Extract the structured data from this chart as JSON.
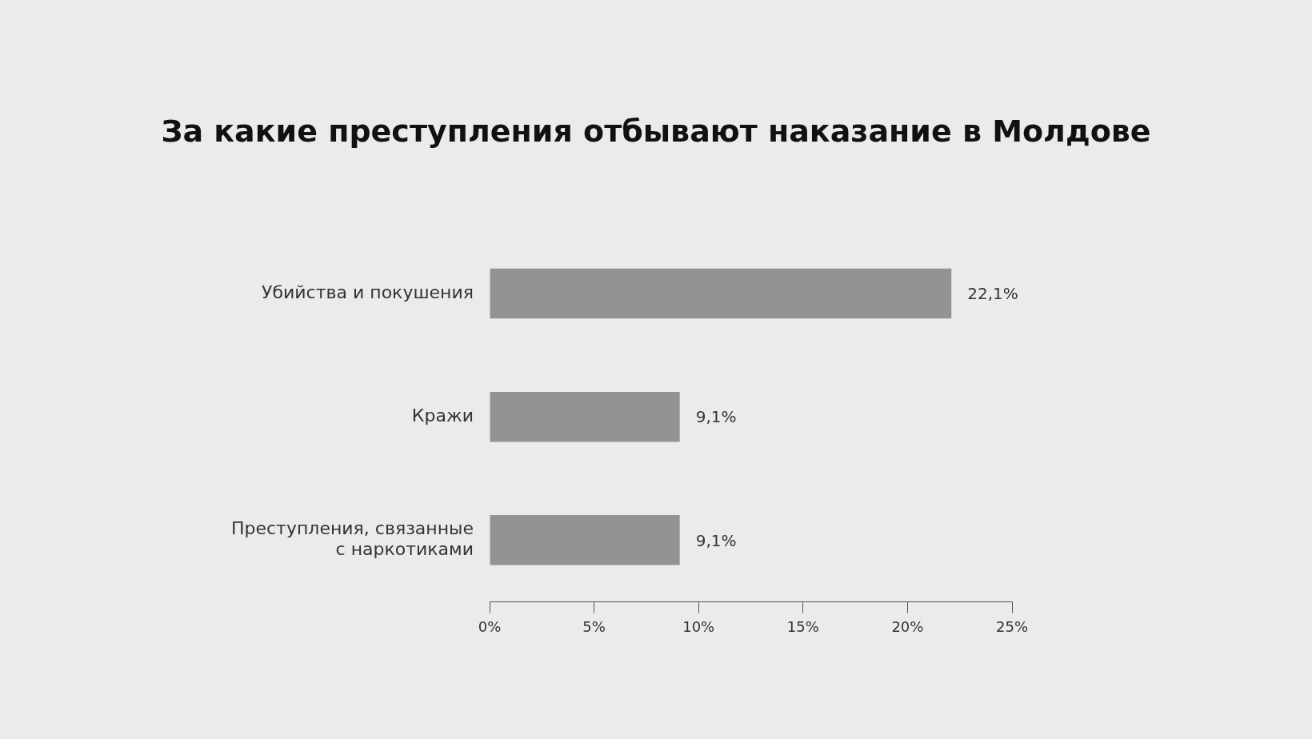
{
  "chart_data": {
    "type": "bar",
    "orientation": "horizontal",
    "title": "За какие преступления отбывают наказание в Молдове",
    "categories": [
      "Убийства и покушения",
      "Кражи",
      "Преступления, связанные с наркотиками"
    ],
    "values": [
      22.1,
      9.1,
      9.1
    ],
    "value_labels": [
      "22,1%",
      "9,1%",
      "9,1%"
    ],
    "color": "#939393",
    "xlim": [
      0,
      25
    ],
    "xticks": [
      {
        "value": 0,
        "label": "0%"
      },
      {
        "value": 5,
        "label": "5%"
      },
      {
        "value": 10,
        "label": "10%"
      },
      {
        "value": 15,
        "label": "15%"
      },
      {
        "value": 20,
        "label": "20%"
      },
      {
        "value": 25,
        "label": "25%"
      }
    ],
    "grid": false,
    "legend": false
  }
}
